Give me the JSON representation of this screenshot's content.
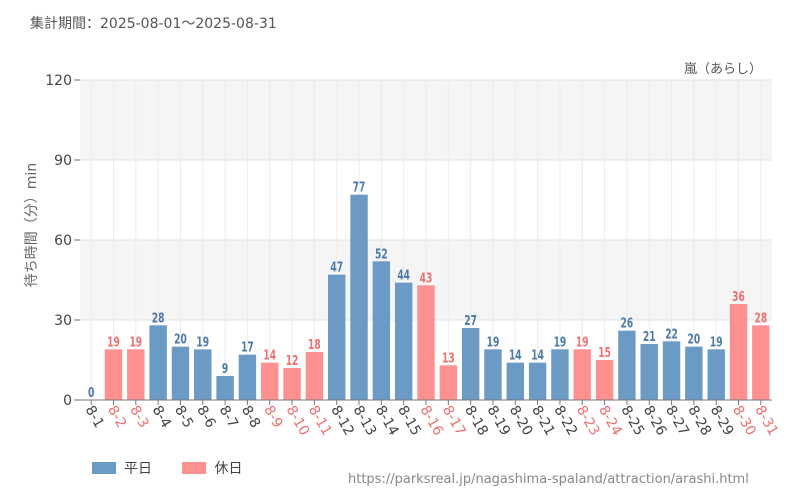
{
  "period": {
    "label": "集計期間：2025-08-01〜2025-08-31"
  },
  "source_url": "https://parksreal.jp/nagashima-spaland/attraction/arashi.html",
  "colors": {
    "weekday": "#6b9ac4",
    "holiday": "#ff9090",
    "weekday_text": "#4b7aa8",
    "holiday_text": "#f07070"
  },
  "chart_data": {
    "type": "bar",
    "title": "嵐（あらし）",
    "xlabel": "",
    "ylabel": "待ち時間（分）min",
    "ylim": [
      0,
      120
    ],
    "yticks": [
      0,
      30,
      60,
      90,
      120
    ],
    "grid": true,
    "legend_position": "bottom-left",
    "categories": [
      "8-1",
      "8-2",
      "8-3",
      "8-4",
      "8-5",
      "8-6",
      "8-7",
      "8-8",
      "8-9",
      "8-10",
      "8-11",
      "8-12",
      "8-13",
      "8-14",
      "8-15",
      "8-16",
      "8-17",
      "8-18",
      "8-19",
      "8-20",
      "8-21",
      "8-22",
      "8-23",
      "8-24",
      "8-25",
      "8-26",
      "8-27",
      "8-28",
      "8-29",
      "8-30",
      "8-31"
    ],
    "values": [
      0,
      19,
      19,
      28,
      20,
      19,
      9,
      17,
      14,
      12,
      18,
      47,
      77,
      52,
      44,
      43,
      13,
      27,
      19,
      14,
      14,
      19,
      19,
      15,
      26,
      21,
      22,
      20,
      19,
      36,
      28
    ],
    "day_type": [
      "平日",
      "休日",
      "休日",
      "平日",
      "平日",
      "平日",
      "平日",
      "平日",
      "休日",
      "休日",
      "休日",
      "平日",
      "平日",
      "平日",
      "平日",
      "休日",
      "休日",
      "平日",
      "平日",
      "平日",
      "平日",
      "平日",
      "休日",
      "休日",
      "平日",
      "平日",
      "平日",
      "平日",
      "平日",
      "休日",
      "休日"
    ],
    "series": [
      {
        "name": "平日"
      },
      {
        "name": "休日"
      }
    ]
  }
}
